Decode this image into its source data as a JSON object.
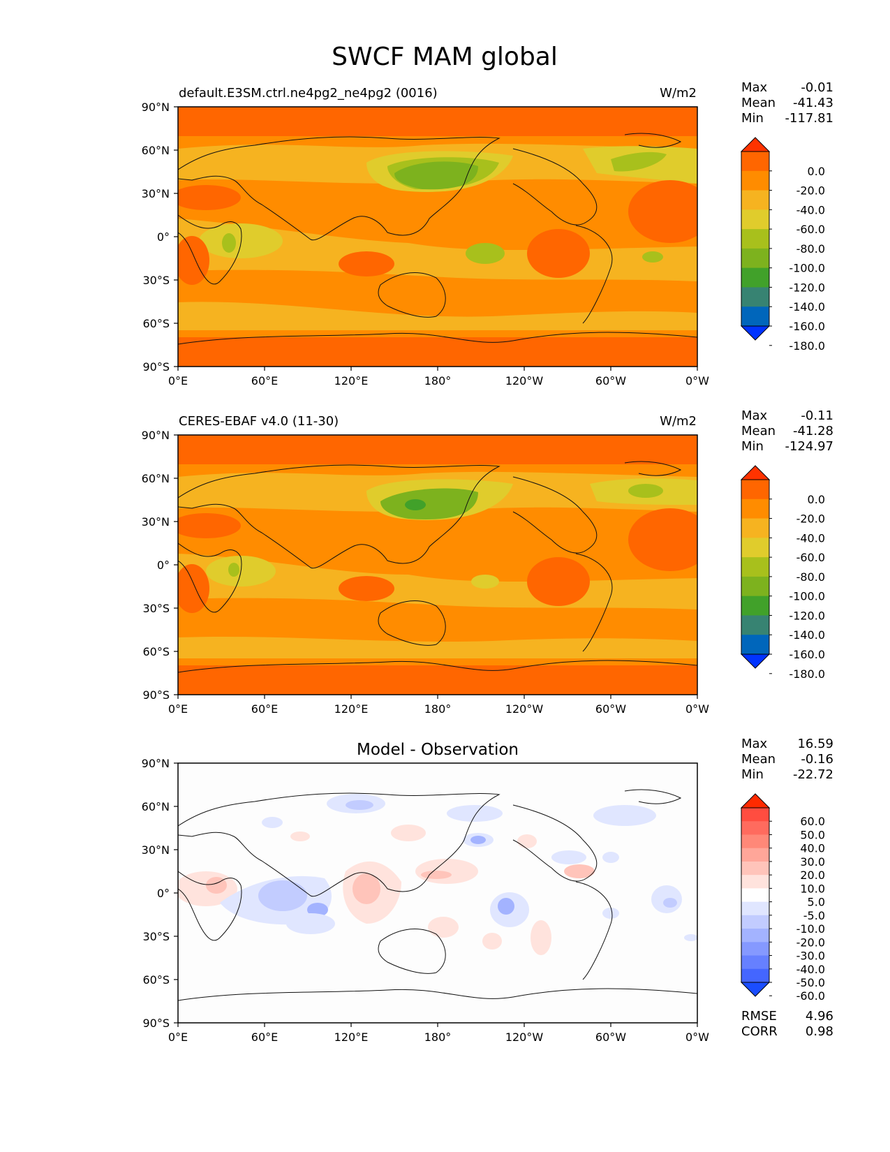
{
  "figure": {
    "title": "SWCF MAM global",
    "x_ticks": [
      "0°E",
      "60°E",
      "120°E",
      "180°",
      "120°W",
      "60°W",
      "0°W"
    ],
    "y_ticks": [
      "90°N",
      "60°N",
      "30°N",
      "0°",
      "30°S",
      "60°S",
      "90°S"
    ],
    "lon_range": [
      0,
      360
    ],
    "lat_range": [
      -90,
      90
    ],
    "projection": "PlateCarree, central longitude 180",
    "coastlines": true
  },
  "panels": [
    {
      "id": "test",
      "title_left": "default.E3SM.ctrl.ne4pg2_ne4pg2 (0016)",
      "title_center": "",
      "units": "W/m2",
      "stats": [
        {
          "label": "Max",
          "value": "-0.01"
        },
        {
          "label": "Mean",
          "value": "-41.43"
        },
        {
          "label": "Min",
          "value": "-117.81"
        }
      ],
      "colorbar_ticks": [
        "0.0",
        "-20.0",
        "-40.0",
        "-60.0",
        "-80.0",
        "-100.0",
        "-120.0",
        "-140.0",
        "-160.0",
        "-180.0"
      ],
      "colorbar_colors": [
        "#ff3300",
        "#ff6600",
        "#ff8c00",
        "#f6b320",
        "#e0cc2c",
        "#a8c01c",
        "#7db21e",
        "#41a12a",
        "#378372",
        "#0066bb",
        "#0033ff"
      ]
    },
    {
      "id": "reference",
      "title_left": "CERES-EBAF v4.0 (11-30)",
      "title_center": "",
      "units": "W/m2",
      "stats": [
        {
          "label": "Max",
          "value": "-0.11"
        },
        {
          "label": "Mean",
          "value": "-41.28"
        },
        {
          "label": "Min",
          "value": "-124.97"
        }
      ],
      "colorbar_ticks": [
        "0.0",
        "-20.0",
        "-40.0",
        "-60.0",
        "-80.0",
        "-100.0",
        "-120.0",
        "-140.0",
        "-160.0",
        "-180.0"
      ],
      "colorbar_colors": [
        "#ff3300",
        "#ff6600",
        "#ff8c00",
        "#f6b320",
        "#e0cc2c",
        "#a8c01c",
        "#7db21e",
        "#41a12a",
        "#378372",
        "#0066bb",
        "#0033ff"
      ]
    },
    {
      "id": "difference",
      "title_left": "",
      "title_center": "Model - Observation",
      "units": "",
      "stats": [
        {
          "label": "Max",
          "value": "16.59"
        },
        {
          "label": "Mean",
          "value": "-0.16"
        },
        {
          "label": "Min",
          "value": "-22.72"
        }
      ],
      "colorbar_ticks": [
        "60.0",
        "50.0",
        "40.0",
        "30.0",
        "20.0",
        "10.0",
        "5.0",
        "-5.0",
        "-10.0",
        "-20.0",
        "-30.0",
        "-40.0",
        "-50.0",
        "-60.0"
      ],
      "colorbar_colors": [
        "#ff2a00",
        "#ff4d40",
        "#ff6b5e",
        "#ff8878",
        "#ffa699",
        "#ffc4ba",
        "#ffe3dd",
        "#ffffff",
        "#e0e6ff",
        "#c2ccff",
        "#a3b3ff",
        "#8599ff",
        "#6680ff",
        "#4466ff",
        "#1a4dff"
      ],
      "bottom_stats": [
        {
          "label": "RMSE",
          "value": "4.96"
        },
        {
          "label": "CORR",
          "value": "0.98"
        }
      ]
    }
  ]
}
